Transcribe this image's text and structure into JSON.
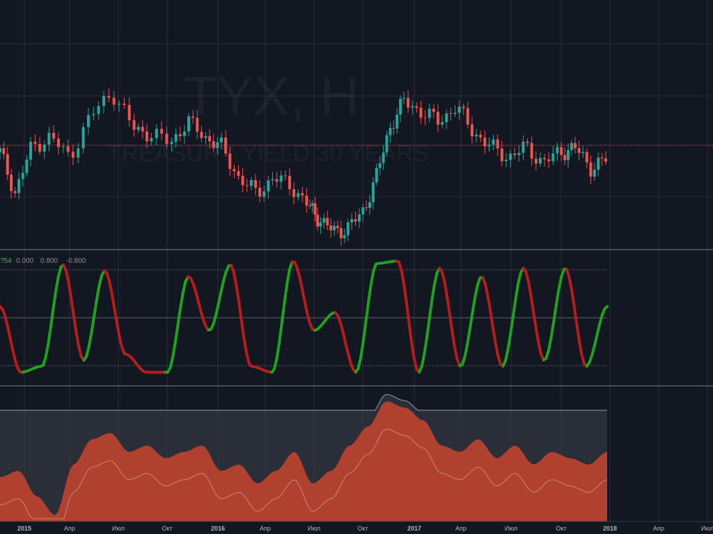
{
  "watermark": {
    "title": "TYX, H",
    "subtitle": "TREASURY YIELD 30 YEARS"
  },
  "oscillator_legend": {
    "value": "?54",
    "levels": [
      "0.000",
      "0.800",
      "-0.800"
    ]
  },
  "colors": {
    "background": "#131722",
    "grid": "#2a2e39",
    "candle_up": "#26a69a",
    "candle_down": "#ef5350",
    "osc_up": "#1fa31f",
    "osc_down": "#b71c1c",
    "area_fill": "#c0442f",
    "band_fill": "#363a45",
    "band_line": "#d1d4dc",
    "price_line": "#ef5350"
  },
  "x_axis": {
    "labels": [
      "2015",
      "Апр",
      "Июл",
      "Окт",
      "2016",
      "Апр",
      "Июл",
      "Окт",
      "2017",
      "Апр",
      "Июл",
      "Окт",
      "2018",
      "Апр",
      "Июл"
    ],
    "major": [
      "2015",
      "2016",
      "2017",
      "2018"
    ]
  },
  "chart_data": [
    {
      "type": "candlestick",
      "title": "TYX, H",
      "subtitle": "TREASURY YIELD 30 YEARS",
      "note": "weekly candles; y values read in pixel-free relative units 0-100 (no price scale visible)",
      "x": [
        "2014-12",
        "2015-01",
        "2015-02",
        "2015-03",
        "2015-04",
        "2015-05",
        "2015-06",
        "2015-07",
        "2015-08",
        "2015-09",
        "2015-10",
        "2015-11",
        "2015-12",
        "2016-01",
        "2016-02",
        "2016-03",
        "2016-04",
        "2016-05",
        "2016-06",
        "2016-07",
        "2016-08",
        "2016-09",
        "2016-10",
        "2016-11",
        "2016-12",
        "2017-01",
        "2017-02",
        "2017-03",
        "2017-04",
        "2017-05",
        "2017-06",
        "2017-07",
        "2017-08",
        "2017-09",
        "2017-10",
        "2017-11",
        "2017-12"
      ],
      "close": [
        68,
        52,
        70,
        74,
        66,
        82,
        92,
        78,
        75,
        72,
        80,
        74,
        70,
        58,
        52,
        58,
        55,
        47,
        42,
        37,
        38,
        44,
        58,
        78,
        88,
        84,
        80,
        86,
        76,
        70,
        66,
        70,
        64,
        68,
        70,
        62,
        65
      ]
    },
    {
      "type": "line",
      "series": [
        {
          "values": [
            60,
            5,
            10,
            95,
            15,
            90,
            20,
            5,
            5,
            85,
            40,
            95,
            10,
            5,
            98,
            40,
            55,
            5,
            96,
            98,
            5,
            92,
            10,
            85,
            10,
            92,
            15,
            92,
            10,
            60
          ]
        }
      ],
      "ylim": [
        -1,
        1
      ],
      "levels": [
        0.8,
        0.0,
        -0.8
      ]
    },
    {
      "type": "area",
      "series": [
        {
          "values": [
            35,
            40,
            20,
            5,
            45,
            65,
            70,
            55,
            60,
            50,
            55,
            60,
            40,
            45,
            30,
            40,
            55,
            30,
            40,
            60,
            75,
            95,
            90,
            80,
            60,
            55,
            65,
            50,
            60,
            45,
            55,
            50,
            45,
            55
          ]
        }
      ]
    }
  ]
}
